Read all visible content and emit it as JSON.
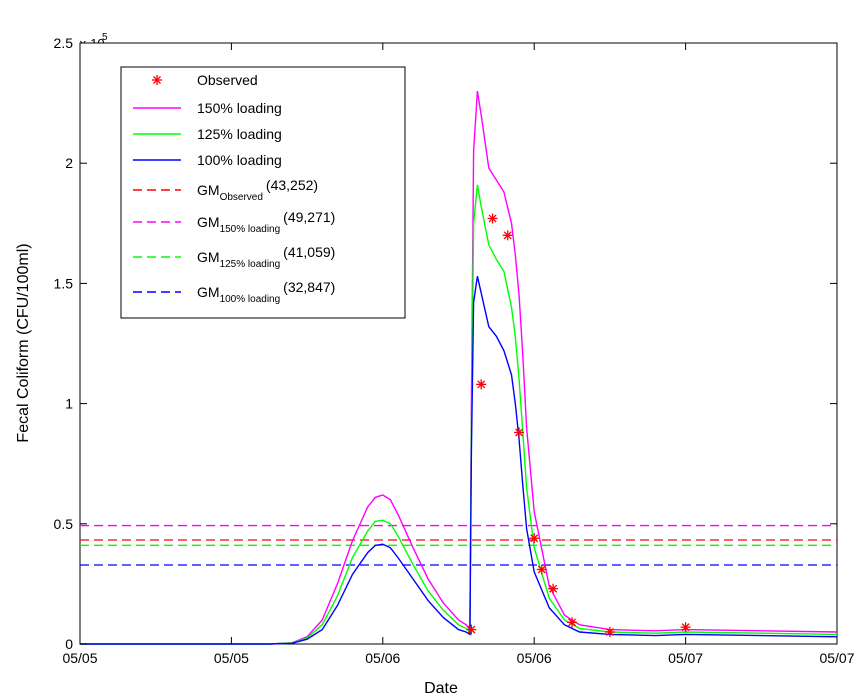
{
  "chart_data": {
    "type": "line",
    "xlabel": "Date",
    "ylabel": "Fecal Coliform (CFU/100ml)",
    "y_exponent_label": "× 10",
    "y_exponent_power": "5",
    "xlim": [
      0,
      1
    ],
    "ylim": [
      0,
      2.5
    ],
    "y_unit_scale": 100000,
    "x_ticks": [
      0,
      0.2,
      0.4,
      0.6,
      0.8,
      1.0
    ],
    "x_tick_labels": [
      "05/05",
      "05/05",
      "05/06",
      "05/06",
      "05/07",
      "05/07"
    ],
    "y_ticks": [
      0,
      0.5,
      1,
      1.5,
      2,
      2.5
    ],
    "y_tick_labels": [
      "0",
      "0.5",
      "1",
      "1.5",
      "2",
      "2.5"
    ],
    "grid": false,
    "legend_position": "top-left",
    "colors": {
      "observed": "#ff0000",
      "load150": "#ff00ff",
      "load125": "#00ff00",
      "load100": "#0000ff",
      "gm_observed": "#ff0000"
    },
    "legend": [
      {
        "key": "observed",
        "marker": "star",
        "label": "Observed",
        "sub": "",
        "value": ""
      },
      {
        "key": "load150",
        "dash": false,
        "label": "150% loading",
        "sub": "",
        "value": ""
      },
      {
        "key": "load125",
        "dash": false,
        "label": "125% loading",
        "sub": "",
        "value": ""
      },
      {
        "key": "load100",
        "dash": false,
        "label": "100% loading",
        "sub": "",
        "value": ""
      },
      {
        "key": "gm_observed",
        "dash": true,
        "label": "GM",
        "sub": "Observed",
        "value": "(43,252)"
      },
      {
        "key": "load150",
        "dash": true,
        "label": "GM",
        "sub": "150% loading",
        "value": "(49,271)"
      },
      {
        "key": "load125",
        "dash": true,
        "label": "GM",
        "sub": "125% loading",
        "value": "(41,059)"
      },
      {
        "key": "load100",
        "dash": true,
        "label": "GM",
        "sub": "100% loading",
        "value": "(32,847)"
      }
    ],
    "series": [
      {
        "key": "load150",
        "x": [
          0,
          0.25,
          0.28,
          0.3,
          0.32,
          0.34,
          0.36,
          0.38,
          0.39,
          0.4,
          0.41,
          0.42,
          0.44,
          0.46,
          0.48,
          0.5,
          0.51,
          0.515,
          0.517,
          0.52,
          0.525,
          0.53,
          0.54,
          0.55,
          0.56,
          0.57,
          0.575,
          0.58,
          0.585,
          0.59,
          0.6,
          0.62,
          0.64,
          0.66,
          0.7,
          0.76,
          0.8,
          0.9,
          1.0
        ],
        "y": [
          0,
          0,
          0.005,
          0.03,
          0.1,
          0.25,
          0.43,
          0.57,
          0.61,
          0.62,
          0.6,
          0.54,
          0.4,
          0.27,
          0.17,
          0.1,
          0.08,
          0.06,
          1.0,
          2.05,
          2.3,
          2.2,
          1.98,
          1.93,
          1.88,
          1.75,
          1.62,
          1.45,
          1.2,
          0.9,
          0.55,
          0.24,
          0.12,
          0.08,
          0.06,
          0.055,
          0.06,
          0.055,
          0.05
        ]
      },
      {
        "key": "load125",
        "x": [
          0,
          0.25,
          0.28,
          0.3,
          0.32,
          0.34,
          0.36,
          0.38,
          0.39,
          0.4,
          0.41,
          0.42,
          0.44,
          0.46,
          0.48,
          0.5,
          0.51,
          0.515,
          0.517,
          0.52,
          0.525,
          0.53,
          0.54,
          0.55,
          0.56,
          0.57,
          0.575,
          0.58,
          0.585,
          0.59,
          0.6,
          0.62,
          0.64,
          0.66,
          0.7,
          0.76,
          0.8,
          0.9,
          1.0
        ],
        "y": [
          0,
          0,
          0.004,
          0.025,
          0.08,
          0.2,
          0.36,
          0.47,
          0.51,
          0.515,
          0.5,
          0.45,
          0.33,
          0.22,
          0.14,
          0.08,
          0.065,
          0.05,
          0.9,
          1.75,
          1.91,
          1.82,
          1.66,
          1.6,
          1.55,
          1.4,
          1.28,
          1.1,
          0.88,
          0.65,
          0.4,
          0.19,
          0.1,
          0.065,
          0.05,
          0.045,
          0.05,
          0.045,
          0.04
        ]
      },
      {
        "key": "load100",
        "x": [
          0,
          0.25,
          0.28,
          0.3,
          0.32,
          0.34,
          0.36,
          0.38,
          0.39,
          0.4,
          0.41,
          0.42,
          0.44,
          0.46,
          0.48,
          0.5,
          0.51,
          0.515,
          0.517,
          0.52,
          0.525,
          0.53,
          0.54,
          0.55,
          0.56,
          0.57,
          0.575,
          0.58,
          0.585,
          0.59,
          0.6,
          0.62,
          0.64,
          0.66,
          0.7,
          0.76,
          0.8,
          0.9,
          1.0
        ],
        "y": [
          0,
          0,
          0.003,
          0.02,
          0.06,
          0.16,
          0.29,
          0.38,
          0.41,
          0.415,
          0.4,
          0.36,
          0.27,
          0.18,
          0.11,
          0.06,
          0.05,
          0.04,
          0.8,
          1.42,
          1.53,
          1.46,
          1.32,
          1.28,
          1.22,
          1.12,
          1.0,
          0.85,
          0.66,
          0.48,
          0.3,
          0.15,
          0.08,
          0.05,
          0.04,
          0.035,
          0.04,
          0.035,
          0.03
        ]
      }
    ],
    "observed_points": {
      "key": "observed",
      "x": [
        0.517,
        0.53,
        0.545,
        0.565,
        0.58,
        0.6,
        0.61,
        0.625,
        0.65,
        0.7,
        0.8
      ],
      "y": [
        0.06,
        1.08,
        1.77,
        1.7,
        0.88,
        0.44,
        0.31,
        0.23,
        0.09,
        0.05,
        0.07
      ]
    },
    "geometric_means": [
      {
        "key": "gm_observed",
        "y": 0.43252
      },
      {
        "key": "load150",
        "y": 0.49271
      },
      {
        "key": "load125",
        "y": 0.41059
      },
      {
        "key": "load100",
        "y": 0.32847
      }
    ]
  }
}
